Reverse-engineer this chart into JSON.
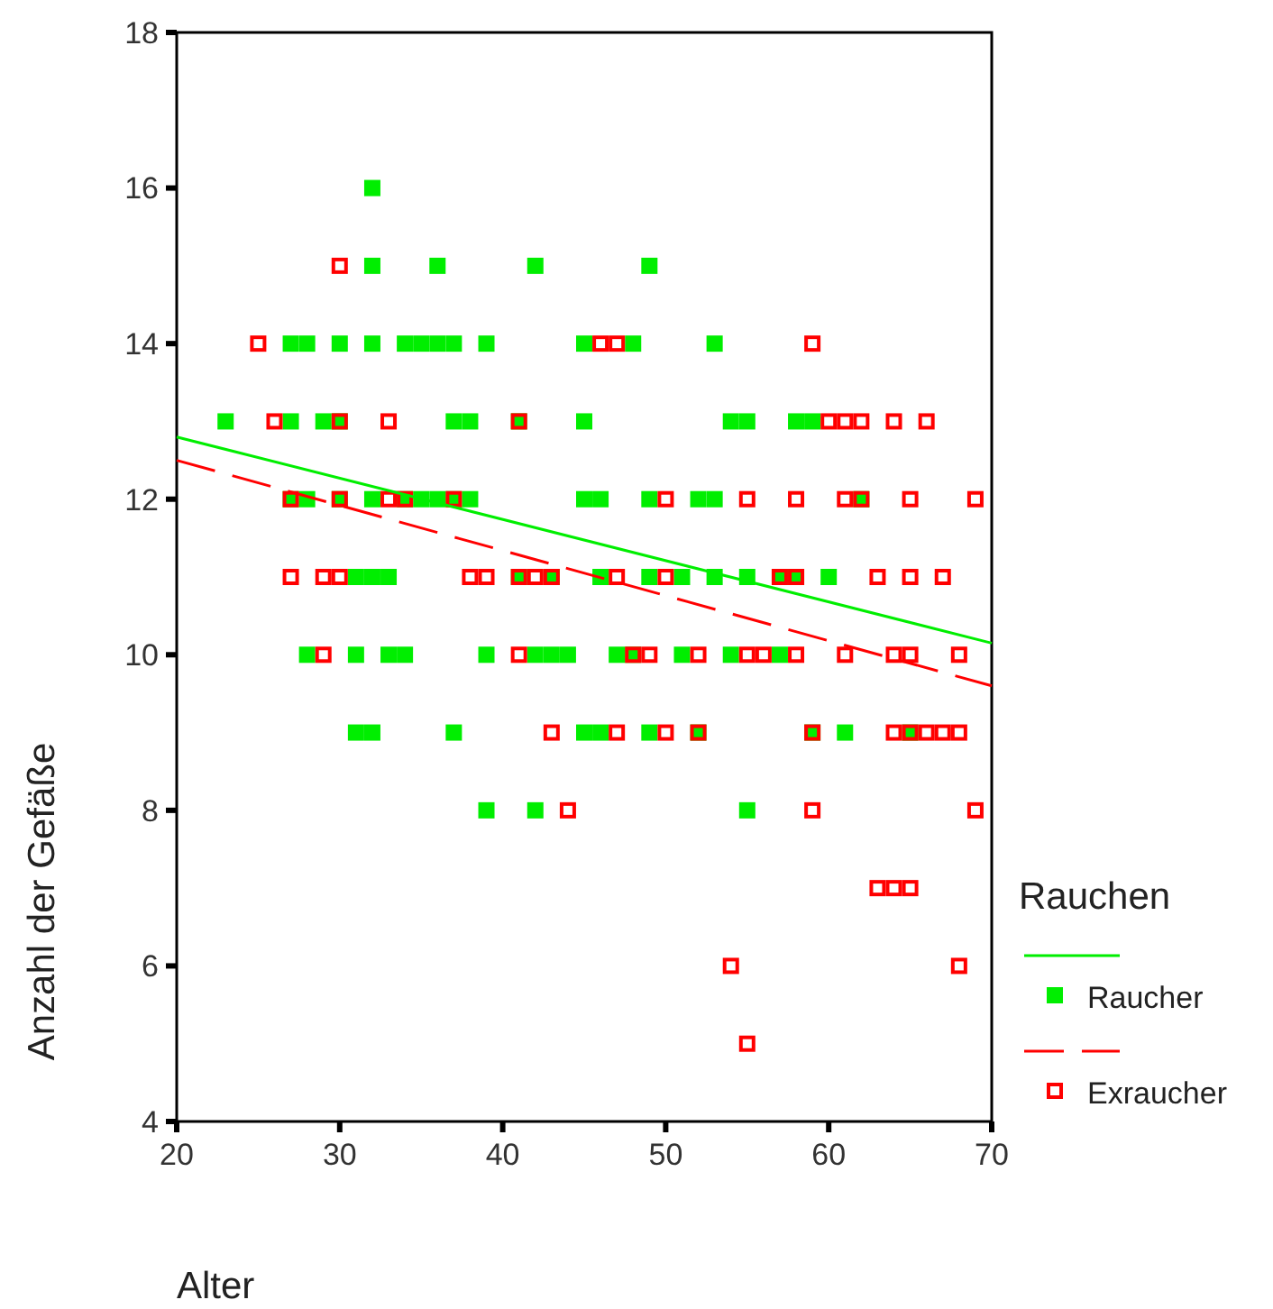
{
  "chart_data": {
    "type": "scatter",
    "xlabel": "Alter",
    "ylabel": "Anzahl der Gefäße",
    "legend_title": "Rauchen",
    "legend": "right",
    "grid": false,
    "xlim": [
      20,
      70
    ],
    "xticks": [
      20,
      30,
      40,
      50,
      60,
      70
    ],
    "ylim": [
      4,
      18
    ],
    "yticks": [
      4,
      6,
      8,
      10,
      12,
      14,
      16,
      18
    ],
    "series": [
      {
        "type": "line",
        "color": "#00ee00",
        "line_style": "solid",
        "x": [
          20,
          70
        ],
        "values": [
          12.8,
          10.15
        ]
      },
      {
        "name": "Raucher",
        "color": "#00ee00",
        "marker": "square",
        "x": [
          32,
          32,
          36,
          42,
          49,
          27,
          28,
          30,
          32,
          34,
          35,
          36,
          37,
          39,
          45,
          48,
          53,
          23,
          27,
          29,
          30,
          37,
          38,
          41,
          45,
          54,
          55,
          58,
          59,
          27,
          28,
          30,
          32,
          34,
          35,
          36,
          37,
          38,
          45,
          46,
          49,
          52,
          53,
          62,
          31,
          32,
          33,
          41,
          43,
          46,
          49,
          51,
          53,
          55,
          57,
          58,
          60,
          28,
          31,
          33,
          34,
          39,
          42,
          43,
          44,
          47,
          48,
          51,
          54,
          57,
          31,
          32,
          37,
          45,
          46,
          49,
          52,
          59,
          61,
          65,
          39,
          42,
          55
        ],
        "values": [
          16,
          15,
          15,
          15,
          15,
          14,
          14,
          14,
          14,
          14,
          14,
          14,
          14,
          14,
          14,
          14,
          14,
          13,
          13,
          13,
          13,
          13,
          13,
          13,
          13,
          13,
          13,
          13,
          13,
          12,
          12,
          12,
          12,
          12,
          12,
          12,
          12,
          12,
          12,
          12,
          12,
          12,
          12,
          12,
          11,
          11,
          11,
          11,
          11,
          11,
          11,
          11,
          11,
          11,
          11,
          11,
          11,
          10,
          10,
          10,
          10,
          10,
          10,
          10,
          10,
          10,
          10,
          10,
          10,
          10,
          9,
          9,
          9,
          9,
          9,
          9,
          9,
          9,
          9,
          9,
          8,
          8,
          8
        ]
      },
      {
        "type": "line",
        "color": "#ff0000",
        "line_style": "dashed",
        "x": [
          20,
          70
        ],
        "values": [
          12.5,
          9.6
        ]
      },
      {
        "name": "Exraucher",
        "color": "#ff0000",
        "marker": "square-open",
        "x": [
          30,
          25,
          46,
          47,
          59,
          26,
          30,
          33,
          41,
          60,
          61,
          62,
          64,
          66,
          27,
          30,
          33,
          34,
          37,
          50,
          55,
          58,
          61,
          62,
          65,
          69,
          27,
          29,
          30,
          38,
          39,
          41,
          42,
          43,
          47,
          50,
          57,
          58,
          63,
          65,
          67,
          29,
          41,
          48,
          49,
          52,
          55,
          56,
          58,
          61,
          64,
          65,
          68,
          43,
          47,
          50,
          52,
          59,
          64,
          65,
          66,
          67,
          68,
          44,
          59,
          69,
          63,
          64,
          65,
          54,
          68,
          55
        ],
        "values": [
          15,
          14,
          14,
          14,
          14,
          13,
          13,
          13,
          13,
          13,
          13,
          13,
          13,
          13,
          12,
          12,
          12,
          12,
          12,
          12,
          12,
          12,
          12,
          12,
          12,
          12,
          11,
          11,
          11,
          11,
          11,
          11,
          11,
          11,
          11,
          11,
          11,
          11,
          11,
          11,
          11,
          10,
          10,
          10,
          10,
          10,
          10,
          10,
          10,
          10,
          10,
          10,
          10,
          9,
          9,
          9,
          9,
          9,
          9,
          9,
          9,
          9,
          9,
          8,
          8,
          8,
          7,
          7,
          7,
          6,
          6,
          5
        ]
      }
    ]
  }
}
